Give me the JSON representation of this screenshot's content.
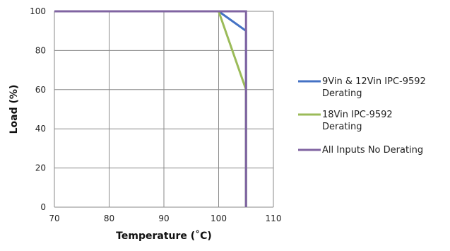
{
  "chart_data": {
    "type": "line",
    "title": "",
    "xlabel": "Temperature (˚C)",
    "ylabel": "Load (%)",
    "xlim": [
      70,
      110
    ],
    "ylim": [
      0,
      100
    ],
    "x_ticks": [
      "70",
      "80",
      "90",
      "100",
      "110"
    ],
    "y_ticks": [
      "0",
      "20",
      "40",
      "60",
      "80",
      "100"
    ],
    "grid": true,
    "legend_position": "right",
    "series": [
      {
        "name": "9Vin & 12Vin IPC-9592 Derating",
        "legend_lines": [
          "9Vin & 12Vin IPC-9592",
          "Derating"
        ],
        "color": "#4472c4",
        "points": [
          [
            70,
            100
          ],
          [
            100,
            100
          ],
          [
            105,
            90
          ],
          [
            105,
            0
          ]
        ]
      },
      {
        "name": "18Vin IPC-9592 Derating",
        "legend_lines": [
          "18Vin IPC-9592",
          "Derating"
        ],
        "color": "#9bbb59",
        "points": [
          [
            70,
            100
          ],
          [
            100,
            100
          ],
          [
            105,
            60
          ],
          [
            105,
            0
          ]
        ]
      },
      {
        "name": "All Inputs No Derating",
        "legend_lines": [
          "All Inputs No Derating"
        ],
        "color": "#8064a2",
        "points": [
          [
            70,
            100
          ],
          [
            105,
            100
          ],
          [
            105,
            0
          ]
        ]
      }
    ]
  }
}
